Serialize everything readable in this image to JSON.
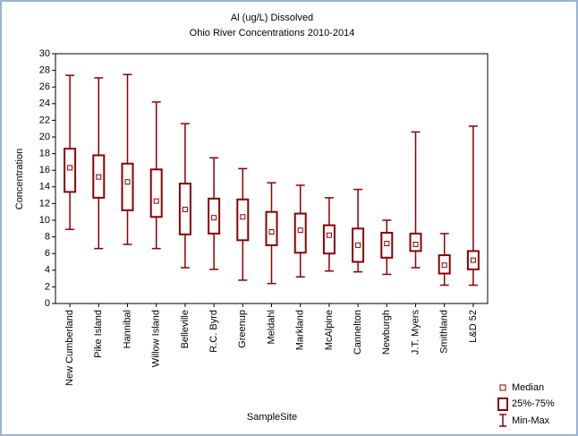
{
  "chart_data": {
    "type": "boxplot",
    "title": "Al (ug/L) Dissolved",
    "subtitle": "Ohio River Concentrations 2010-2014",
    "x_label": "SampleSite",
    "y_label": "Concentration",
    "categories": [
      "New Cumberland",
      "Pike Island",
      "Hannibal",
      "Willow Island",
      "Belleville",
      "R.C. Byrd",
      "Greenup",
      "Meldahl",
      "Markland",
      "McAlpine",
      "Cannelton",
      "Newburgh",
      "J.T. Myers",
      "Smithland",
      "L&D 52"
    ],
    "min": [
      8.9,
      6.6,
      7.1,
      6.6,
      4.3,
      4.1,
      2.8,
      2.4,
      3.2,
      3.9,
      3.8,
      3.5,
      4.3,
      2.2,
      2.2
    ],
    "q1": [
      13.4,
      12.7,
      11.2,
      10.4,
      8.3,
      8.4,
      7.6,
      7.0,
      6.1,
      6.0,
      5.0,
      5.5,
      6.3,
      3.6,
      4.1
    ],
    "median": [
      16.3,
      15.2,
      14.6,
      12.3,
      11.3,
      10.3,
      10.4,
      8.6,
      8.8,
      8.2,
      7.0,
      7.2,
      7.1,
      4.6,
      5.2
    ],
    "q3": [
      18.6,
      17.8,
      16.8,
      16.1,
      14.4,
      12.6,
      12.5,
      11.0,
      10.8,
      9.4,
      9.0,
      8.5,
      8.4,
      5.8,
      6.3
    ],
    "max": [
      27.4,
      27.1,
      27.5,
      24.2,
      21.6,
      17.5,
      16.2,
      14.5,
      14.2,
      12.7,
      13.7,
      10.0,
      20.6,
      8.4,
      21.3
    ],
    "color": "#8b0000",
    "legend": {
      "median": "Median",
      "box": "25%-75%",
      "whisker": "Min-Max"
    },
    "legend_position": "bottom-right",
    "ylim": [
      0,
      30
    ],
    "yticks": [
      0,
      2,
      4,
      6,
      8,
      10,
      12,
      14,
      16,
      18,
      20,
      22,
      24,
      26,
      28,
      30
    ],
    "grid": false
  }
}
